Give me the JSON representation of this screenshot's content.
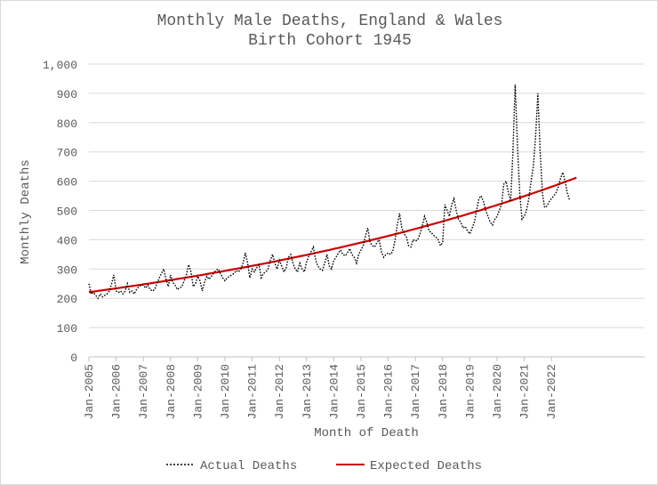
{
  "chart_data": {
    "type": "line",
    "title": "Monthly Male Deaths, England & Wales",
    "subtitle": "Birth Cohort 1945",
    "xlabel": "Month of Death",
    "ylabel": "Monthly Deaths",
    "ylim": [
      0,
      1000
    ],
    "y_ticks": [
      "0",
      "100",
      "200",
      "300",
      "400",
      "500",
      "600",
      "700",
      "800",
      "900",
      "1,000"
    ],
    "x_ticks": [
      "Jan-2005",
      "Jan-2006",
      "Jan-2007",
      "Jan-2008",
      "Jan-2009",
      "Jan-2010",
      "Jan-2011",
      "Jan-2012",
      "Jan-2013",
      "Jan-2014",
      "Jan-2015",
      "Jan-2016",
      "Jan-2017",
      "Jan-2018",
      "Jan-2019",
      "Jan-2020",
      "Jan-2021",
      "Jan-2022"
    ],
    "x_start": "Jan-2005",
    "grid": true,
    "legend_position": "bottom",
    "series": [
      {
        "name": "Actual Deaths",
        "color": "#000000",
        "style": "dotted",
        "values": [
          250,
          215,
          220,
          210,
          200,
          215,
          205,
          210,
          215,
          225,
          250,
          280,
          225,
          220,
          225,
          215,
          225,
          250,
          220,
          225,
          215,
          230,
          240,
          245,
          245,
          235,
          245,
          230,
          225,
          230,
          250,
          270,
          285,
          300,
          265,
          240,
          280,
          255,
          245,
          230,
          235,
          240,
          260,
          280,
          315,
          290,
          240,
          250,
          275,
          260,
          225,
          255,
          275,
          265,
          275,
          285,
          295,
          300,
          285,
          270,
          260,
          270,
          275,
          280,
          285,
          295,
          290,
          300,
          320,
          355,
          320,
          270,
          300,
          290,
          305,
          315,
          270,
          285,
          290,
          300,
          330,
          350,
          320,
          300,
          330,
          310,
          290,
          305,
          340,
          350,
          320,
          300,
          290,
          320,
          300,
          290,
          325,
          345,
          360,
          375,
          330,
          310,
          300,
          295,
          320,
          350,
          310,
          300,
          330,
          340,
          355,
          365,
          350,
          345,
          355,
          370,
          350,
          340,
          320,
          350,
          365,
          380,
          415,
          440,
          390,
          380,
          375,
          390,
          400,
          360,
          340,
          350,
          355,
          350,
          360,
          400,
          450,
          490,
          440,
          420,
          410,
          380,
          375,
          400,
          395,
          400,
          420,
          445,
          480,
          460,
          430,
          425,
          415,
          410,
          400,
          380,
          390,
          520,
          500,
          480,
          520,
          540,
          500,
          470,
          460,
          440,
          445,
          430,
          420,
          440,
          460,
          500,
          540,
          550,
          530,
          500,
          480,
          460,
          450,
          470,
          480,
          500,
          520,
          590,
          600,
          560,
          530,
          700,
          930,
          720,
          560,
          470,
          480,
          500,
          540,
          600,
          650,
          750,
          900,
          700,
          560,
          510,
          515,
          530,
          540,
          550,
          560,
          580,
          610,
          630,
          600,
          560,
          535
        ]
      },
      {
        "name": "Expected Deaths",
        "color": "#cc0000",
        "style": "solid",
        "start_value": 221,
        "end_value": 612,
        "end_x": "Dec-2022"
      }
    ]
  }
}
